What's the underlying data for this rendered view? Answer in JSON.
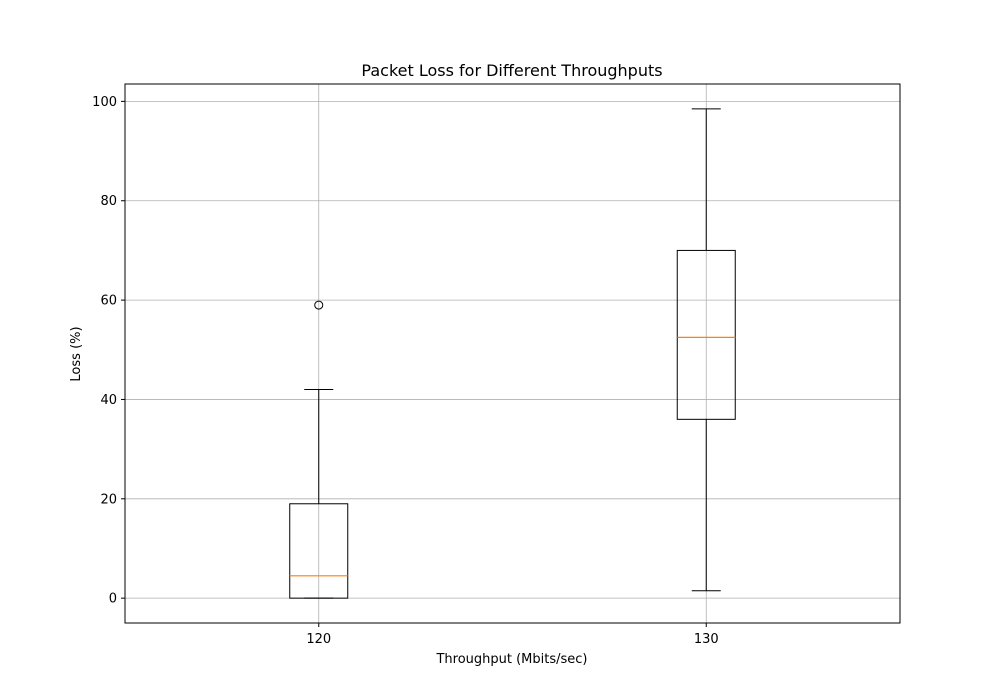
{
  "chart_data": {
    "type": "box",
    "title": "Packet Loss for Different Throughputs",
    "xlabel": "Throughput (Mbits/sec)",
    "ylabel": "Loss (%)",
    "categories": [
      "120",
      "130"
    ],
    "ylim": [
      -5,
      103.5
    ],
    "yticks": [
      {
        "value": 0,
        "label": "0"
      },
      {
        "value": 20,
        "label": "20"
      },
      {
        "value": 40,
        "label": "40"
      },
      {
        "value": 60,
        "label": "60"
      },
      {
        "value": 80,
        "label": "80"
      },
      {
        "value": 100,
        "label": "100"
      }
    ],
    "grid": true,
    "boxes": [
      {
        "category": "120",
        "whisker_low": 0,
        "q1": 0,
        "median": 4.5,
        "q3": 19,
        "whisker_high": 42,
        "outliers": [
          59
        ]
      },
      {
        "category": "130",
        "whisker_low": 1.5,
        "q1": 36,
        "median": 52.5,
        "q3": 70,
        "whisker_high": 98.5,
        "outliers": []
      }
    ],
    "colors": {
      "box": "#000000",
      "median": "#ff7f0e",
      "grid": "#b0b0b0"
    }
  }
}
